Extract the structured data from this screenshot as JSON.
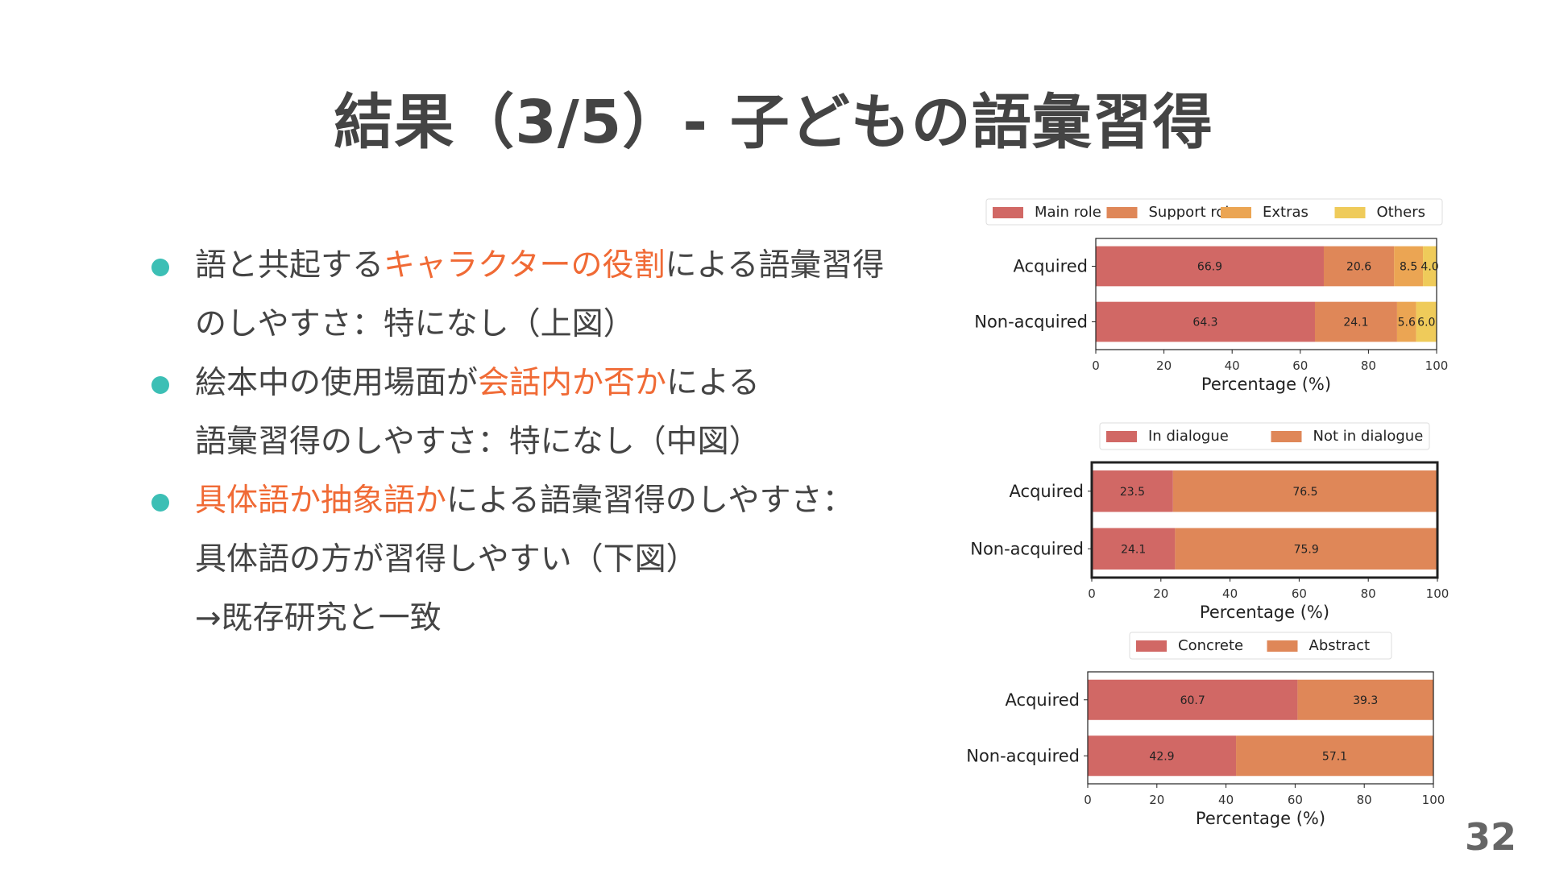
{
  "title": "結果（3/5）- 子どもの語彙習得",
  "bullets": [
    {
      "lines": [
        [
          {
            "t": "語と共起する"
          },
          {
            "t": "キャラクターの役割",
            "hl": true
          },
          {
            "t": "による語彙習得"
          }
        ],
        [
          {
            "t": "のしやすさ：特になし（上図）"
          }
        ]
      ]
    },
    {
      "lines": [
        [
          {
            "t": "絵本中の使用場面が"
          },
          {
            "t": "会話内か否か",
            "hl": true
          },
          {
            "t": "による"
          }
        ],
        [
          {
            "t": "語彙習得のしやすさ：特になし（中図）"
          }
        ]
      ]
    },
    {
      "lines": [
        [
          {
            "t": "具体語か抽象語か",
            "hl": true
          },
          {
            "t": "による語彙習得のしやすさ："
          }
        ],
        [
          {
            "t": "具体語の方が習得しやすい（下図）"
          }
        ],
        [
          {
            "t": "→既存研究と一致"
          }
        ]
      ]
    }
  ],
  "page_number": "32",
  "colors": {
    "bullet": "#3cbfb5",
    "highlight": "#f06a35",
    "text": "#444444"
  },
  "chart_data": [
    {
      "type": "bar",
      "orientation": "horizontal",
      "stacked": true,
      "categories": [
        "Acquired",
        "Non-acquired"
      ],
      "series": [
        {
          "name": "Main role",
          "values": [
            66.9,
            64.3
          ],
          "color": "#d16865"
        },
        {
          "name": "Support role",
          "values": [
            20.6,
            24.1
          ],
          "color": "#df8758"
        },
        {
          "name": "Extras",
          "values": [
            8.5,
            5.6
          ],
          "color": "#eba553"
        },
        {
          "name": "Others",
          "values": [
            4.0,
            6.0
          ],
          "color": "#efcb5a"
        }
      ],
      "xlabel": "Percentage (%)",
      "xlim": [
        0,
        100
      ],
      "xticks": [
        0,
        20,
        40,
        60,
        80,
        100
      ],
      "legend": "top"
    },
    {
      "type": "bar",
      "orientation": "horizontal",
      "stacked": true,
      "categories": [
        "Acquired",
        "Non-acquired"
      ],
      "series": [
        {
          "name": "In dialogue",
          "values": [
            23.5,
            24.1
          ],
          "color": "#d16865"
        },
        {
          "name": "Not in dialogue",
          "values": [
            76.5,
            75.9
          ],
          "color": "#df8758"
        }
      ],
      "xlabel": "Percentage (%)",
      "xlim": [
        0,
        100
      ],
      "xticks": [
        0,
        20,
        40,
        60,
        80,
        100
      ],
      "legend": "top"
    },
    {
      "type": "bar",
      "orientation": "horizontal",
      "stacked": true,
      "categories": [
        "Acquired",
        "Non-acquired"
      ],
      "series": [
        {
          "name": "Concrete",
          "values": [
            60.7,
            42.9
          ],
          "color": "#d16865"
        },
        {
          "name": "Abstract",
          "values": [
            39.3,
            57.1
          ],
          "color": "#df8758"
        }
      ],
      "xlabel": "Percentage (%)",
      "xlim": [
        0,
        100
      ],
      "xticks": [
        0,
        20,
        40,
        60,
        80,
        100
      ],
      "legend": "top"
    }
  ]
}
